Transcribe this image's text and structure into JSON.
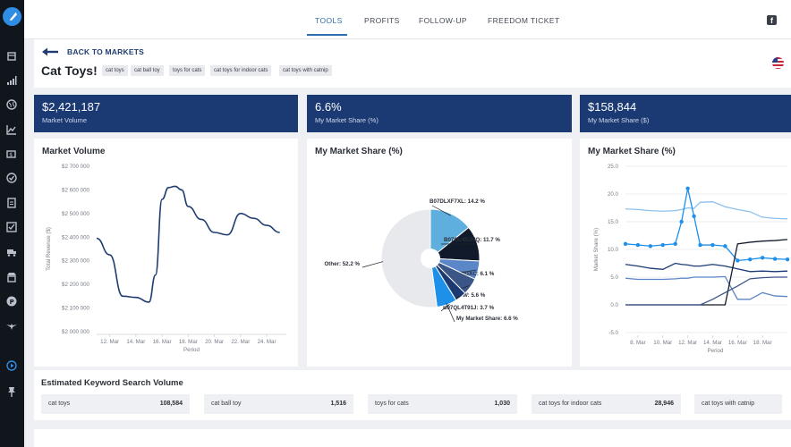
{
  "nav": {
    "tabs": [
      {
        "label": "TOOLS",
        "active": true
      },
      {
        "label": "PROFITS",
        "active": false
      },
      {
        "label": "FOLLOW-UP",
        "active": false
      },
      {
        "label": "FREEDOM TICKET",
        "active": false
      }
    ]
  },
  "header": {
    "back_label": "BACK TO MARKETS",
    "title": "Cat Toys!",
    "tags": [
      "cat toys",
      "cat ball toy",
      "toys for cats",
      "cat toys for indoor cats",
      "cat toys with catnip"
    ]
  },
  "kpis": [
    {
      "value": "$2,421,187",
      "label": "Market Volume"
    },
    {
      "value": "6.6%",
      "label": "My Market Share (%)"
    },
    {
      "value": "$158,844",
      "label": "My Market Share ($)"
    }
  ],
  "colors": {
    "brand_navy": "#1b3a73",
    "accent_blue": "#2f6fb0",
    "line_navy": "#1f3d70"
  },
  "icons": [
    "logo-icon",
    "box-icon",
    "signal-icon",
    "globe-icon",
    "chart-icon",
    "dollar-icon",
    "check-circle-icon",
    "document-icon",
    "checklist-icon",
    "truck-icon",
    "store-icon",
    "circle-p-icon",
    "eagle-icon",
    "play-icon",
    "pin-icon",
    "back-arrow-icon",
    "facebook-icon",
    "us-flag-icon"
  ],
  "market_volume": {
    "title": "Market Volume",
    "ylabel": "Total Revenue ($)",
    "xlabel": "Period",
    "yticks": [
      "$2 700 000",
      "$2 600 000",
      "$2 500 000",
      "$2 400 000",
      "$2 300 000",
      "$2 200 000",
      "$2 100 000",
      "$2 000 000"
    ],
    "xticks": [
      "12. Mar",
      "14. Mar",
      "16. Mar",
      "18. Mar",
      "20. Mar",
      "22. Mar",
      "24. Mar"
    ]
  },
  "market_share": {
    "title": "My Market Share (%)",
    "slices": [
      {
        "label": "B07DLXF7XL: 14.2 %",
        "value": 14.2,
        "color": "#5eaede"
      },
      {
        "label": "B07GL4SJHQ: 11.7 %",
        "value": 11.7,
        "color": "#111a2b"
      },
      {
        "label": "B00MQYWGXC: 6.1 %",
        "value": 6.1,
        "color": "#5b86c8"
      },
      {
        "label": "B000IYSAIW: 5.6 %",
        "value": 5.6,
        "color": "#3c5587"
      },
      {
        "label": "B07QL4T91J: 3.7 %",
        "value": 3.7,
        "color": "#1b3a73"
      },
      {
        "label": "My Market Share: 6.6 %",
        "value": 6.6,
        "color": "#1e90ea"
      },
      {
        "label": "Other: 52.2 %",
        "value": 52.2,
        "color": "#e8e9ec"
      }
    ]
  },
  "share_chart": {
    "title": "My Market Share (%)",
    "ylabel": "Market Share (%)",
    "xlabel": "Period",
    "yticks": [
      "25.0",
      "20.0",
      "15.0",
      "10.0",
      "5.0",
      "0.0",
      "-5.0"
    ],
    "xticks": [
      "8. Mar",
      "10. Mar",
      "12. Mar",
      "14. Mar",
      "16. Mar",
      "18. Mar"
    ]
  },
  "chart_data": [
    {
      "type": "line",
      "title": "Market Volume",
      "xlabel": "Period",
      "ylabel": "Total Revenue ($)",
      "ylim": [
        2000000,
        2700000
      ],
      "x": [
        11,
        12,
        13,
        14,
        15,
        15.5,
        16,
        16.5,
        17,
        17.5,
        18,
        19,
        20,
        21,
        22,
        23,
        24,
        25
      ],
      "series": [
        {
          "values": [
            2395000,
            2325000,
            2150000,
            2145000,
            2125000,
            2240000,
            2560000,
            2610000,
            2615000,
            2600000,
            2530000,
            2475000,
            2420000,
            2410000,
            2500000,
            2480000,
            2450000,
            2420000
          ]
        }
      ]
    },
    {
      "type": "pie",
      "title": "My Market Share (%)",
      "categories": [
        "B07DLXF7XL",
        "B07GL4SJHQ",
        "B00MQYWGXC",
        "B000IYSAIW",
        "B07QL4T91J",
        "My Market Share",
        "Other"
      ],
      "values": [
        14.2,
        11.7,
        6.1,
        5.6,
        3.7,
        6.6,
        52.2
      ]
    },
    {
      "type": "line",
      "title": "My Market Share (%)",
      "xlabel": "Period",
      "ylabel": "Market Share (%)",
      "ylim": [
        -5,
        25
      ],
      "x": [
        7,
        8,
        9,
        10,
        11,
        11.5,
        12,
        12.5,
        13,
        14,
        15,
        16,
        17,
        18,
        19,
        20
      ],
      "series": [
        {
          "values": [
            17.3,
            17.2,
            17.0,
            16.9,
            17.0,
            17.2,
            17.5,
            17.4,
            18.5,
            18.6,
            17.7,
            17.2,
            16.8,
            15.8,
            15.6,
            15.5
          ],
          "color": "#8cc0ec"
        },
        {
          "values": [
            11.0,
            10.8,
            10.6,
            10.8,
            11.0,
            15.0,
            21.0,
            16.0,
            10.8,
            10.8,
            10.6,
            8.0,
            8.2,
            8.5,
            8.3,
            8.2
          ],
          "color": "#1e90ea",
          "markers": true
        },
        {
          "values": [
            7.3,
            7.0,
            6.6,
            6.4,
            7.5,
            7.3,
            7.2,
            7.0,
            7.0,
            7.3,
            7.0,
            6.5,
            6.0,
            6.1,
            6.0,
            6.1
          ],
          "color": "#1b3a73"
        },
        {
          "values": [
            4.8,
            4.6,
            4.6,
            4.6,
            4.7,
            4.8,
            4.8,
            5.0,
            5.0,
            5.0,
            5.1,
            1.0,
            1.0,
            2.2,
            1.6,
            1.5
          ],
          "color": "#5b86c8"
        },
        {
          "values": [
            0.0,
            0.0,
            0.0,
            0.0,
            0.0,
            0.0,
            0.0,
            0.0,
            0.0,
            0.0,
            0.0,
            11.0,
            11.3,
            11.5,
            11.6,
            11.8
          ],
          "color": "#111a2b"
        },
        {
          "values": [
            0.0,
            0.0,
            0.0,
            0.0,
            0.0,
            0.0,
            0.0,
            0.0,
            0.0,
            1.0,
            2.2,
            3.4,
            4.7,
            4.9,
            5.0,
            5.0
          ],
          "color": "#3c5587"
        }
      ]
    }
  ],
  "keywords": {
    "title": "Estimated Keyword Search Volume",
    "items": [
      {
        "name": "cat toys",
        "volume": "108,584"
      },
      {
        "name": "cat ball toy",
        "volume": "1,516"
      },
      {
        "name": "toys for cats",
        "volume": "1,030"
      },
      {
        "name": "cat toys for indoor cats",
        "volume": "28,946"
      },
      {
        "name": "cat toys with catnip",
        "volume": ""
      }
    ]
  }
}
